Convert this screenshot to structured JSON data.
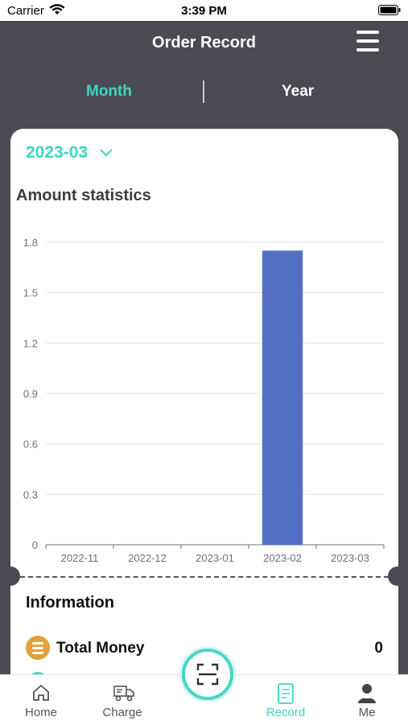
{
  "status_bar": {
    "carrier": "Carrier",
    "time": "3:39 PM"
  },
  "header": {
    "title": "Order Record"
  },
  "tabs": [
    {
      "label": "Month",
      "active": true
    },
    {
      "label": "Year",
      "active": false
    }
  ],
  "date_selector": {
    "value": "2023-03"
  },
  "chart_section": {
    "title": "Amount statistics"
  },
  "chart_data": {
    "type": "bar",
    "categories": [
      "2022-11",
      "2022-12",
      "2023-01",
      "2023-02",
      "2023-03"
    ],
    "values": [
      0,
      0,
      0,
      1.75,
      0
    ],
    "ylim": [
      0,
      1.8
    ],
    "yticks": [
      "0",
      "0.3",
      "0.6",
      "0.9",
      "1.2",
      "1.5",
      "1.8"
    ],
    "grid": true,
    "bar_color": "#5470c6"
  },
  "info": {
    "title": "Information",
    "rows": [
      {
        "label": "Total Money",
        "value": "0"
      }
    ]
  },
  "tabbar": {
    "items": [
      {
        "label": "Home",
        "icon": "home-icon"
      },
      {
        "label": "Charge",
        "icon": "truck-icon"
      },
      {
        "label": "Record",
        "icon": "document-icon",
        "active": true
      },
      {
        "label": "Me",
        "icon": "user-icon"
      }
    ],
    "scan_icon": "scan-icon"
  },
  "colors": {
    "accent": "#3ed6c2",
    "header_bg": "#4a4a52",
    "bar": "#5470c6"
  }
}
